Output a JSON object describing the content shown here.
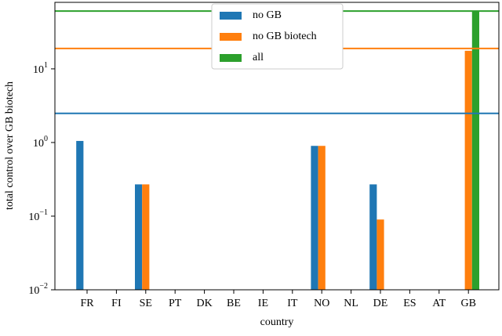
{
  "chart_data": {
    "type": "bar",
    "x_label": "country",
    "y_label": "total control over GB biotech",
    "categories": [
      "FR",
      "FI",
      "SE",
      "PT",
      "DK",
      "BE",
      "IE",
      "IT",
      "NO",
      "NL",
      "DE",
      "ES",
      "AT",
      "GB"
    ],
    "series": [
      {
        "name": "no GB",
        "color": "#1f77b4",
        "values": [
          1.05,
          null,
          0.27,
          null,
          null,
          null,
          null,
          null,
          0.9,
          null,
          0.27,
          null,
          null,
          null
        ],
        "total": 2.49
      },
      {
        "name": "no GB biotech",
        "color": "#ff7f0e",
        "values": [
          null,
          null,
          0.27,
          null,
          null,
          null,
          null,
          null,
          0.9,
          null,
          0.09,
          null,
          null,
          17.6
        ],
        "total": 18.9
      },
      {
        "name": "all",
        "color": "#2ca02c",
        "values": [
          null,
          null,
          null,
          null,
          null,
          null,
          null,
          null,
          null,
          null,
          null,
          null,
          null,
          61
        ],
        "total": 61
      }
    ],
    "log_scale": true,
    "ylim": [
      0.01,
      80
    ],
    "yticks": [
      {
        "value": 0.01,
        "label": "10",
        "exponent": "−2"
      },
      {
        "value": 0.1,
        "label": "10",
        "exponent": "−1"
      },
      {
        "value": 1,
        "label": "10",
        "exponent": "0"
      },
      {
        "value": 10,
        "label": "10",
        "exponent": "1"
      }
    ],
    "legend": "upper center"
  }
}
